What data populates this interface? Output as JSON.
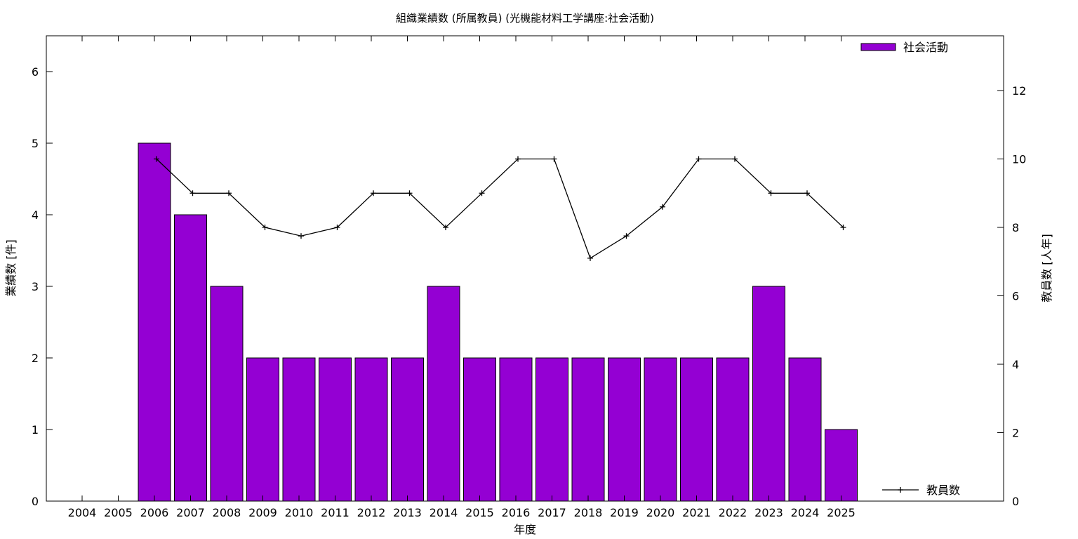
{
  "chart_data": {
    "type": "bar",
    "title": "組織業績数 (所属教員) (光機能材料工学講座:社会活動)",
    "xlabel": "年度",
    "ylabel": "業績数 [件]",
    "y2label": "教員数 [人年]",
    "categories": [
      "2004",
      "2005",
      "2006",
      "2007",
      "2008",
      "2009",
      "2010",
      "2011",
      "2012",
      "2013",
      "2014",
      "2015",
      "2016",
      "2017",
      "2018",
      "2019",
      "2020",
      "2021",
      "2022",
      "2023",
      "2024",
      "2025"
    ],
    "ylim": [
      0,
      6.5
    ],
    "yticks": [
      "0",
      "1",
      "2",
      "3",
      "4",
      "5",
      "6"
    ],
    "y2lim": [
      0,
      13.6
    ],
    "y2ticks": [
      "0",
      "2",
      "4",
      "6",
      "8",
      "10",
      "12"
    ],
    "legend_position": "top-right / bottom-right",
    "grid": false,
    "series": [
      {
        "name": "社会活動",
        "type": "bar",
        "color": "#9400d3",
        "values": [
          0,
          0,
          5,
          4,
          3,
          2,
          2,
          2,
          2,
          2,
          3,
          2,
          2,
          2,
          2,
          2,
          2,
          2,
          2,
          3,
          2,
          1
        ]
      },
      {
        "name": "教員数",
        "type": "line",
        "axis": "y2",
        "color": "#000000",
        "values": [
          null,
          null,
          10,
          9,
          9,
          8,
          7.75,
          8,
          9,
          9,
          8,
          9,
          10,
          10,
          7.1,
          7.75,
          8.6,
          10,
          10,
          9,
          9,
          8
        ]
      }
    ]
  }
}
